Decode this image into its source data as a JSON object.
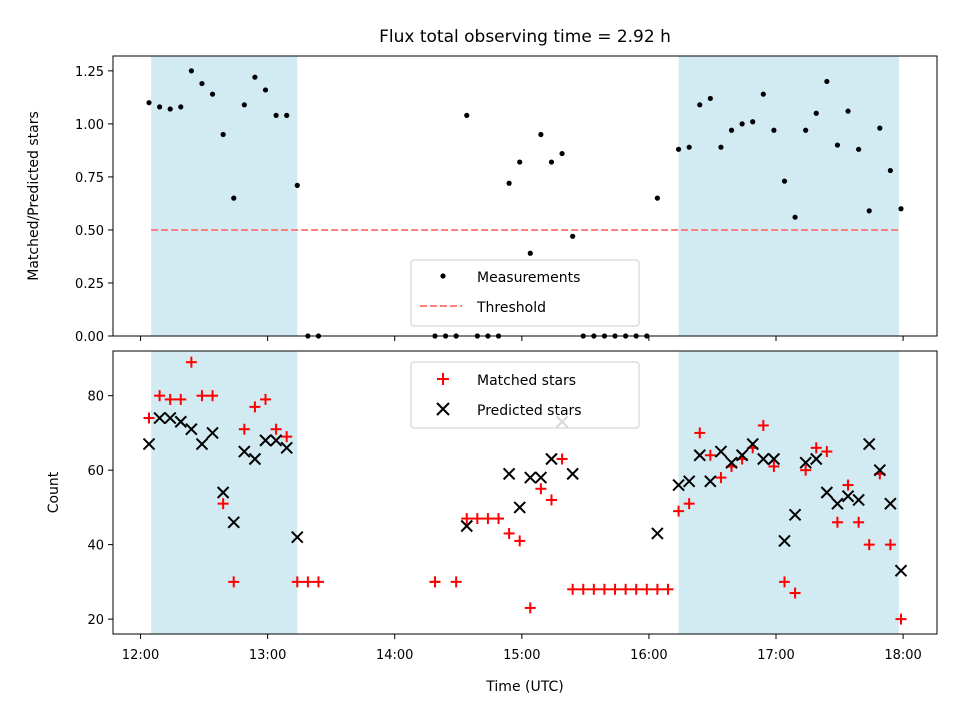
{
  "figure": {
    "title": "Flux total observing time = 2.92 h",
    "xlabel": "Time (UTC)"
  },
  "colors": {
    "shade": "#add8e6",
    "measurement": "#000000",
    "threshold": "#ff7f7f",
    "matched": "#ff0000",
    "predicted": "#000000"
  },
  "chart_data": [
    {
      "type": "scatter",
      "ylabel": "Matched/Predicted stars",
      "xlim": [
        "11:47",
        "18:16"
      ],
      "ylim": [
        0,
        1.32
      ],
      "yticks": [
        0.0,
        0.25,
        0.5,
        0.75,
        1.0,
        1.25
      ],
      "ytick_labels": [
        "0.00",
        "0.25",
        "0.50",
        "0.75",
        "1.00",
        "1.25"
      ],
      "xticks": [
        "12:00",
        "13:00",
        "14:00",
        "15:00",
        "16:00",
        "17:00",
        "18:00"
      ],
      "shaded_spans": [
        [
          "12:05",
          "13:14"
        ],
        [
          "16:14",
          "17:58"
        ]
      ],
      "legend": {
        "location": "lower center",
        "entries": [
          "Measurements",
          "Threshold"
        ]
      },
      "threshold": {
        "name": "Threshold",
        "y": 0.5,
        "style": "dashed"
      },
      "series": [
        {
          "name": "Measurements",
          "marker": "dot",
          "points": [
            [
              "12:04",
              1.1
            ],
            [
              "12:09",
              1.08
            ],
            [
              "12:14",
              1.07
            ],
            [
              "12:19",
              1.08
            ],
            [
              "12:24",
              1.25
            ],
            [
              "12:29",
              1.19
            ],
            [
              "12:34",
              1.14
            ],
            [
              "12:39",
              0.95
            ],
            [
              "12:44",
              0.65
            ],
            [
              "12:49",
              1.09
            ],
            [
              "12:54",
              1.22
            ],
            [
              "12:59",
              1.16
            ],
            [
              "13:04",
              1.04
            ],
            [
              "13:09",
              1.04
            ],
            [
              "13:14",
              0.71
            ],
            [
              "13:19",
              0.0
            ],
            [
              "13:24",
              0.0
            ],
            [
              "14:19",
              0.0
            ],
            [
              "14:24",
              0.0
            ],
            [
              "14:29",
              0.0
            ],
            [
              "14:34",
              1.04
            ],
            [
              "14:39",
              0.0
            ],
            [
              "14:44",
              0.0
            ],
            [
              "14:49",
              0.0
            ],
            [
              "14:54",
              0.72
            ],
            [
              "14:59",
              0.82
            ],
            [
              "15:04",
              0.39
            ],
            [
              "15:09",
              0.95
            ],
            [
              "15:14",
              0.82
            ],
            [
              "15:19",
              0.86
            ],
            [
              "15:24",
              0.47
            ],
            [
              "15:29",
              0.0
            ],
            [
              "15:34",
              0.0
            ],
            [
              "15:39",
              0.0
            ],
            [
              "15:44",
              0.0
            ],
            [
              "15:49",
              0.0
            ],
            [
              "15:54",
              0.0
            ],
            [
              "15:59",
              0.0
            ],
            [
              "16:04",
              0.65
            ],
            [
              "16:14",
              0.88
            ],
            [
              "16:19",
              0.89
            ],
            [
              "16:24",
              1.09
            ],
            [
              "16:29",
              1.12
            ],
            [
              "16:34",
              0.89
            ],
            [
              "16:39",
              0.97
            ],
            [
              "16:44",
              1.0
            ],
            [
              "16:49",
              1.01
            ],
            [
              "16:54",
              1.14
            ],
            [
              "16:59",
              0.97
            ],
            [
              "17:04",
              0.73
            ],
            [
              "17:09",
              0.56
            ],
            [
              "17:14",
              0.97
            ],
            [
              "17:19",
              1.05
            ],
            [
              "17:24",
              1.2
            ],
            [
              "17:29",
              0.9
            ],
            [
              "17:34",
              1.06
            ],
            [
              "17:39",
              0.88
            ],
            [
              "17:44",
              0.59
            ],
            [
              "17:49",
              0.98
            ],
            [
              "17:54",
              0.78
            ],
            [
              "17:59",
              0.6
            ]
          ]
        }
      ]
    },
    {
      "type": "scatter",
      "ylabel": "Count",
      "xlim": [
        "11:47",
        "18:16"
      ],
      "ylim": [
        16,
        92
      ],
      "yticks": [
        20,
        40,
        60,
        80
      ],
      "ytick_labels": [
        "20",
        "40",
        "60",
        "80"
      ],
      "xticks": [
        "12:00",
        "13:00",
        "14:00",
        "15:00",
        "16:00",
        "17:00",
        "18:00"
      ],
      "xtick_labels": [
        "12:00",
        "13:00",
        "14:00",
        "15:00",
        "16:00",
        "17:00",
        "18:00"
      ],
      "shaded_spans": [
        [
          "12:05",
          "13:14"
        ],
        [
          "16:14",
          "17:58"
        ]
      ],
      "legend": {
        "location": "upper center",
        "entries": [
          "Matched stars",
          "Predicted stars"
        ]
      },
      "series": [
        {
          "name": "Matched stars",
          "marker": "plus",
          "points": [
            [
              "12:04",
              74
            ],
            [
              "12:09",
              80
            ],
            [
              "12:14",
              79
            ],
            [
              "12:19",
              79
            ],
            [
              "12:24",
              89
            ],
            [
              "12:29",
              80
            ],
            [
              "12:34",
              80
            ],
            [
              "12:39",
              51
            ],
            [
              "12:44",
              30
            ],
            [
              "12:49",
              71
            ],
            [
              "12:54",
              77
            ],
            [
              "12:59",
              79
            ],
            [
              "13:04",
              71
            ],
            [
              "13:09",
              69
            ],
            [
              "13:14",
              30
            ],
            [
              "13:19",
              30
            ],
            [
              "13:24",
              30
            ],
            [
              "14:19",
              30
            ],
            [
              "14:19",
              30
            ],
            [
              "14:29",
              30
            ],
            [
              "14:34",
              47
            ],
            [
              "14:39",
              47
            ],
            [
              "14:44",
              47
            ],
            [
              "14:49",
              47
            ],
            [
              "14:54",
              43
            ],
            [
              "14:59",
              41
            ],
            [
              "15:04",
              23
            ],
            [
              "15:09",
              55
            ],
            [
              "15:14",
              52
            ],
            [
              "15:19",
              63
            ],
            [
              "15:24",
              28
            ],
            [
              "15:29",
              28
            ],
            [
              "15:34",
              28
            ],
            [
              "15:39",
              28
            ],
            [
              "15:44",
              28
            ],
            [
              "15:49",
              28
            ],
            [
              "15:54",
              28
            ],
            [
              "15:59",
              28
            ],
            [
              "16:04",
              28
            ],
            [
              "16:09",
              28
            ],
            [
              "16:14",
              49
            ],
            [
              "16:19",
              51
            ],
            [
              "16:24",
              70
            ],
            [
              "16:29",
              64
            ],
            [
              "16:34",
              58
            ],
            [
              "16:39",
              61
            ],
            [
              "16:44",
              63
            ],
            [
              "16:49",
              66
            ],
            [
              "16:54",
              72
            ],
            [
              "16:59",
              61
            ],
            [
              "17:04",
              30
            ],
            [
              "17:09",
              27
            ],
            [
              "17:14",
              60
            ],
            [
              "17:19",
              66
            ],
            [
              "17:24",
              65
            ],
            [
              "17:29",
              46
            ],
            [
              "17:34",
              56
            ],
            [
              "17:39",
              46
            ],
            [
              "17:44",
              40
            ],
            [
              "17:49",
              59
            ],
            [
              "17:54",
              40
            ],
            [
              "17:59",
              20
            ]
          ]
        },
        {
          "name": "Predicted stars",
          "marker": "x",
          "points": [
            [
              "12:04",
              67
            ],
            [
              "12:09",
              74
            ],
            [
              "12:14",
              74
            ],
            [
              "12:19",
              73
            ],
            [
              "12:24",
              71
            ],
            [
              "12:29",
              67
            ],
            [
              "12:34",
              70
            ],
            [
              "12:39",
              54
            ],
            [
              "12:44",
              46
            ],
            [
              "12:49",
              65
            ],
            [
              "12:54",
              63
            ],
            [
              "12:59",
              68
            ],
            [
              "13:04",
              68
            ],
            [
              "13:09",
              66
            ],
            [
              "13:14",
              42
            ],
            [
              "14:34",
              45
            ],
            [
              "14:54",
              59
            ],
            [
              "14:59",
              50
            ],
            [
              "15:04",
              58
            ],
            [
              "15:09",
              58
            ],
            [
              "15:14",
              63
            ],
            [
              "15:19",
              73
            ],
            [
              "15:24",
              59
            ],
            [
              "16:04",
              43
            ],
            [
              "16:14",
              56
            ],
            [
              "16:19",
              57
            ],
            [
              "16:24",
              64
            ],
            [
              "16:29",
              57
            ],
            [
              "16:34",
              65
            ],
            [
              "16:39",
              62
            ],
            [
              "16:44",
              64
            ],
            [
              "16:49",
              67
            ],
            [
              "16:54",
              63
            ],
            [
              "16:59",
              63
            ],
            [
              "17:04",
              41
            ],
            [
              "17:09",
              48
            ],
            [
              "17:14",
              62
            ],
            [
              "17:19",
              63
            ],
            [
              "17:24",
              54
            ],
            [
              "17:29",
              51
            ],
            [
              "17:34",
              53
            ],
            [
              "17:39",
              52
            ],
            [
              "17:44",
              67
            ],
            [
              "17:49",
              60
            ],
            [
              "17:54",
              51
            ],
            [
              "17:59",
              33
            ]
          ]
        }
      ]
    }
  ]
}
